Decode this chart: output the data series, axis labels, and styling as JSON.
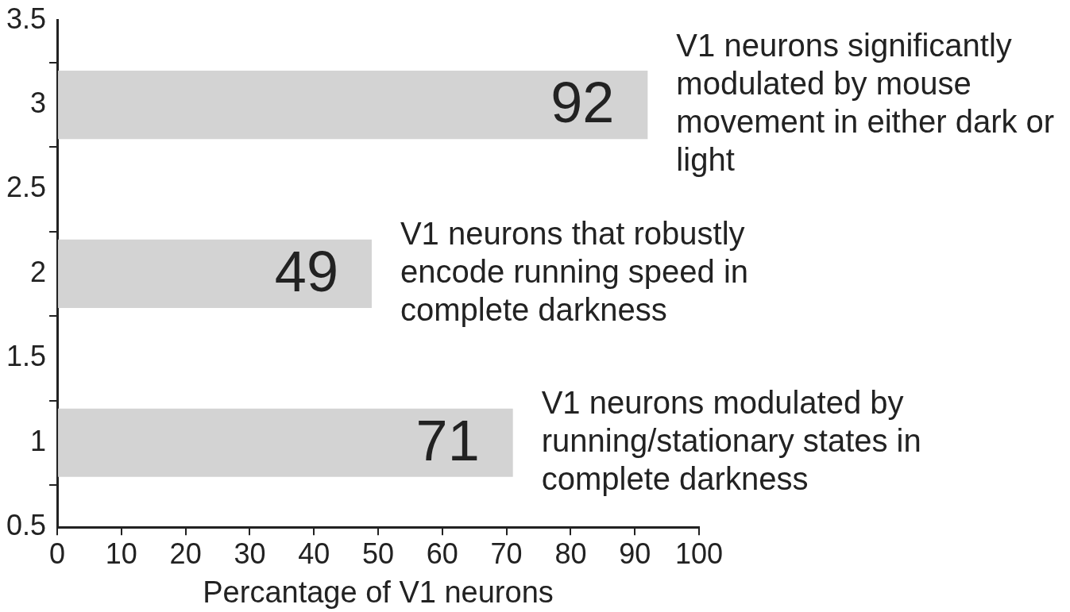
{
  "chart_data": {
    "type": "bar",
    "orientation": "horizontal",
    "x": [
      1,
      2,
      3
    ],
    "values": [
      71,
      49,
      92
    ],
    "color": "#d3d3d3",
    "xlim": [
      0,
      100
    ],
    "xticks": [
      0,
      10,
      20,
      30,
      40,
      50,
      60,
      70,
      80,
      90,
      100
    ],
    "ylim": [
      0.5,
      3.5
    ],
    "yticks": [
      0.5,
      1,
      1.5,
      2,
      2.5,
      3,
      3.5
    ],
    "xlabel": "Percantage of V1 neurons",
    "data_labels": true,
    "grid": false,
    "legend": false,
    "annotations": [
      {
        "text": "V1 neurons modulated by running/stationary states in complete darkness",
        "x": 71,
        "y": 1
      },
      {
        "text": "V1 neurons that robustly encode running speed in complete darkness",
        "x": 49,
        "y": 2
      },
      {
        "text": "V1 neurons significantly modulated by mouse movement in either dark or light",
        "x": 92,
        "y": 3
      }
    ]
  }
}
